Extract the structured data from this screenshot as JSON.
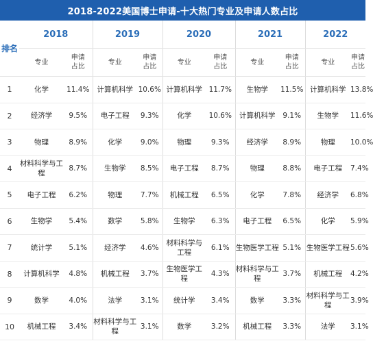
{
  "title": "2018-2022美国博士申请-十大热门专业及申请人数占比",
  "rank_header": "排名",
  "major_header": "专业",
  "share_header_line1": "申请",
  "share_header_line2": "占比",
  "years": [
    "2018",
    "2019",
    "2020",
    "2021",
    "2022"
  ],
  "rows": [
    {
      "rank": "1",
      "cells": [
        [
          "化学",
          "11.4%"
        ],
        [
          "计算机科学",
          "10.6%"
        ],
        [
          "计算机科学",
          "11.7%"
        ],
        [
          "生物学",
          "11.5%"
        ],
        [
          "计算机科学",
          "13.8%"
        ]
      ]
    },
    {
      "rank": "2",
      "cells": [
        [
          "经济学",
          "9.5%"
        ],
        [
          "电子工程",
          "9.3%"
        ],
        [
          "化学",
          "10.6%"
        ],
        [
          "计算机科学",
          "9.1%"
        ],
        [
          "生物学",
          "11.6%"
        ]
      ]
    },
    {
      "rank": "3",
      "cells": [
        [
          "物理",
          "8.9%"
        ],
        [
          "化学",
          "9.0%"
        ],
        [
          "物理",
          "9.3%"
        ],
        [
          "经济学",
          "8.9%"
        ],
        [
          "物理",
          "10.0%"
        ]
      ]
    },
    {
      "rank": "4",
      "cells": [
        [
          "材料科学与工程",
          "8.7%"
        ],
        [
          "生物学",
          "8.5%"
        ],
        [
          "电子工程",
          "8.7%"
        ],
        [
          "物理",
          "8.8%"
        ],
        [
          "电子工程",
          "7.4%"
        ]
      ]
    },
    {
      "rank": "5",
      "cells": [
        [
          "电子工程",
          "6.2%"
        ],
        [
          "物理",
          "7.7%"
        ],
        [
          "机械工程",
          "6.5%"
        ],
        [
          "化学",
          "7.8%"
        ],
        [
          "经济学",
          "6.8%"
        ]
      ]
    },
    {
      "rank": "6",
      "cells": [
        [
          "生物学",
          "5.4%"
        ],
        [
          "数学",
          "5.8%"
        ],
        [
          "生物学",
          "6.3%"
        ],
        [
          "电子工程",
          "6.5%"
        ],
        [
          "化学",
          "5.9%"
        ]
      ]
    },
    {
      "rank": "7",
      "cells": [
        [
          "统计学",
          "5.1%"
        ],
        [
          "经济学",
          "4.6%"
        ],
        [
          "材料科学与工程",
          "6.1%"
        ],
        [
          "生物医学工程",
          "5.1%"
        ],
        [
          "生物医学工程",
          "5.6%"
        ]
      ]
    },
    {
      "rank": "8",
      "cells": [
        [
          "计算机科学",
          "4.8%"
        ],
        [
          "机械工程",
          "3.7%"
        ],
        [
          "生物医学工程",
          "4.3%"
        ],
        [
          "材料科学与工程",
          "3.7%"
        ],
        [
          "机械工程",
          "4.2%"
        ]
      ]
    },
    {
      "rank": "9",
      "cells": [
        [
          "数学",
          "4.0%"
        ],
        [
          "法学",
          "3.1%"
        ],
        [
          "统计学",
          "3.4%"
        ],
        [
          "数学",
          "3.3%"
        ],
        [
          "材料科学与工程",
          "3.9%"
        ]
      ]
    },
    {
      "rank": "10",
      "cells": [
        [
          "机械工程",
          "3.4%"
        ],
        [
          "材料科学与工程",
          "3.1%"
        ],
        [
          "数学",
          "3.2%"
        ],
        [
          "机械工程",
          "3.3%"
        ],
        [
          "法学",
          "3.1%"
        ]
      ]
    }
  ]
}
